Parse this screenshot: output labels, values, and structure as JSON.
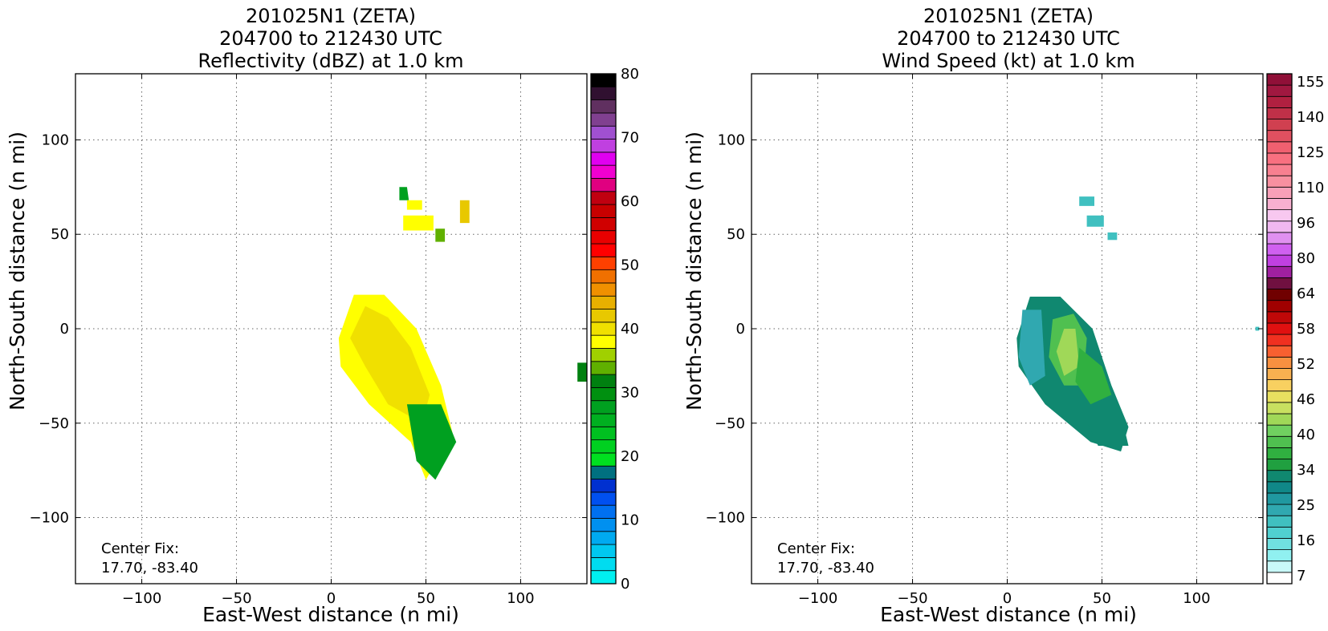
{
  "panels": [
    {
      "id": "reflectivity",
      "title_lines": [
        "201025N1 (ZETA)",
        "204700 to 212430 UTC",
        "Reflectivity (dBZ) at 1.0 km"
      ],
      "center_fix": [
        "Center Fix:",
        "17.70, -83.40"
      ],
      "colorbar": {
        "tick_labels": [
          "0",
          "10",
          "20",
          "30",
          "40",
          "50",
          "60",
          "70",
          "80"
        ],
        "colors": [
          "#00f0f0",
          "#00dcf0",
          "#00c8f0",
          "#00aaf0",
          "#0090f0",
          "#0070f0",
          "#0050f0",
          "#0030d0",
          "#007080",
          "#00e020",
          "#00d020",
          "#00c020",
          "#00b020",
          "#00a020",
          "#009010",
          "#008010",
          "#60b000",
          "#a0d000",
          "#ffff00",
          "#f0e000",
          "#e8c800",
          "#e8b000",
          "#f09000",
          "#f07000",
          "#ff4000",
          "#ff0000",
          "#e80000",
          "#d00000",
          "#c80000",
          "#c00010",
          "#e00080",
          "#f000d0",
          "#e000f0",
          "#c040e0",
          "#a050d0",
          "#804090",
          "#603060",
          "#301030",
          "#000000"
        ]
      }
    },
    {
      "id": "wind",
      "title_lines": [
        "201025N1 (ZETA)",
        "204700 to 212430 UTC",
        "Wind Speed (kt) at 1.0 km"
      ],
      "center_fix": [
        "Center Fix:",
        "17.70, -83.40"
      ],
      "colorbar": {
        "tick_labels": [
          "7",
          "16",
          "25",
          "34",
          "40",
          "46",
          "52",
          "58",
          "64",
          "80",
          "96",
          "110",
          "125",
          "140",
          "155"
        ],
        "colors": [
          "#ffffff",
          "#c8f8f8",
          "#90f0f0",
          "#70e0e0",
          "#50d0d0",
          "#40c0c0",
          "#30a8b0",
          "#2098a0",
          "#108888",
          "#108870",
          "#20a040",
          "#30b040",
          "#50c050",
          "#70d060",
          "#a0d858",
          "#c8e060",
          "#e8e060",
          "#f8d060",
          "#f8b050",
          "#f89040",
          "#f86030",
          "#f03020",
          "#e01010",
          "#c00808",
          "#a00000",
          "#700000",
          "#701040",
          "#a020a0",
          "#c040e0",
          "#d060f0",
          "#e090f0",
          "#f0b8f0",
          "#f8c8f0",
          "#f8b0d0",
          "#f8a0b8",
          "#f890a0",
          "#f88090",
          "#f87080",
          "#f06070",
          "#e05060",
          "#d04050",
          "#c03048",
          "#b02040",
          "#a01840",
          "#901038"
        ]
      }
    }
  ],
  "axes": {
    "xlabel": "East-West distance (n mi)",
    "ylabel": "North-South distance (n mi)",
    "x_ticks": [
      "−100",
      "−50",
      "0",
      "50",
      "100"
    ],
    "y_ticks": [
      "100",
      "50",
      "0",
      "−50",
      "−100"
    ]
  },
  "chart_data": [
    {
      "type": "heatmap",
      "title": "201025N1 (ZETA) 204700 to 212430 UTC Reflectivity (dBZ) at 1.0 km",
      "xlabel": "East-West distance (n mi)",
      "ylabel": "North-South distance (n mi)",
      "xlim": [
        -135,
        135
      ],
      "ylim": [
        -135,
        135
      ],
      "x_ticks": [
        -100,
        -50,
        0,
        50,
        100
      ],
      "y_ticks": [
        -100,
        -50,
        0,
        50,
        100
      ],
      "grid": true,
      "colorbar_range": [
        0,
        80
      ],
      "colorbar_ticks": [
        0,
        10,
        20,
        30,
        40,
        50,
        60,
        70,
        80
      ],
      "units": "dBZ",
      "echo_regions": [
        {
          "polygon": [
            [
              12,
              18
            ],
            [
              28,
              18
            ],
            [
              45,
              0
            ],
            [
              58,
              -30
            ],
            [
              64,
              -55
            ],
            [
              50,
              -80
            ],
            [
              42,
              -60
            ],
            [
              20,
              -40
            ],
            [
              5,
              -20
            ],
            [
              4,
              -5
            ]
          ],
          "approx_value": 38
        },
        {
          "polygon": [
            [
              18,
              12
            ],
            [
              30,
              6
            ],
            [
              42,
              -10
            ],
            [
              52,
              -35
            ],
            [
              48,
              -50
            ],
            [
              30,
              -40
            ],
            [
              18,
              -20
            ],
            [
              10,
              -5
            ]
          ],
          "approx_value": 40
        },
        {
          "polygon": [
            [
              40,
              -40
            ],
            [
              58,
              -40
            ],
            [
              66,
              -60
            ],
            [
              55,
              -80
            ],
            [
              45,
              -70
            ]
          ],
          "approx_value": 28
        },
        {
          "polygon": [
            [
              36,
              75
            ],
            [
              40,
              75
            ],
            [
              41,
              68
            ],
            [
              36,
              68
            ]
          ],
          "approx_value": 28
        },
        {
          "polygon": [
            [
              40,
              68
            ],
            [
              48,
              68
            ],
            [
              48,
              63
            ],
            [
              40,
              63
            ]
          ],
          "approx_value": 38
        },
        {
          "polygon": [
            [
              38,
              60
            ],
            [
              54,
              60
            ],
            [
              54,
              52
            ],
            [
              38,
              52
            ]
          ],
          "approx_value": 38
        },
        {
          "polygon": [
            [
              55,
              53
            ],
            [
              60,
              53
            ],
            [
              60,
              46
            ],
            [
              55,
              46
            ]
          ],
          "approx_value": 34
        },
        {
          "polygon": [
            [
              68,
              68
            ],
            [
              73,
              68
            ],
            [
              73,
              56
            ],
            [
              68,
              56
            ]
          ],
          "approx_value": 42
        },
        {
          "polygon": [
            [
              130,
              -18
            ],
            [
              135,
              -18
            ],
            [
              135,
              -28
            ],
            [
              130,
              -28
            ]
          ],
          "approx_value": 32
        }
      ],
      "center_fix": [
        17.7,
        -83.4
      ]
    },
    {
      "type": "heatmap",
      "title": "201025N1 (ZETA) 204700 to 212430 UTC Wind Speed (kt) at 1.0 km",
      "xlabel": "East-West distance (n mi)",
      "ylabel": "North-South distance (n mi)",
      "xlim": [
        -135,
        135
      ],
      "ylim": [
        -135,
        135
      ],
      "x_ticks": [
        -100,
        -50,
        0,
        50,
        100
      ],
      "y_ticks": [
        -100,
        -50,
        0,
        50,
        100
      ],
      "grid": true,
      "colorbar_range": [
        7,
        160
      ],
      "colorbar_ticks": [
        7,
        16,
        25,
        34,
        40,
        46,
        52,
        58,
        64,
        80,
        96,
        110,
        125,
        140,
        155
      ],
      "units": "kt",
      "wind_regions": [
        {
          "polygon": [
            [
              12,
              17
            ],
            [
              28,
              17
            ],
            [
              45,
              0
            ],
            [
              55,
              -30
            ],
            [
              64,
              -52
            ],
            [
              60,
              -65
            ],
            [
              44,
              -60
            ],
            [
              20,
              -40
            ],
            [
              6,
              -20
            ],
            [
              5,
              -5
            ]
          ],
          "approx_value": 40
        },
        {
          "polygon": [
            [
              8,
              10
            ],
            [
              18,
              10
            ],
            [
              20,
              -25
            ],
            [
              12,
              -30
            ],
            [
              6,
              -15
            ]
          ],
          "approx_value": 28
        },
        {
          "polygon": [
            [
              24,
              5
            ],
            [
              35,
              8
            ],
            [
              42,
              -5
            ],
            [
              40,
              -30
            ],
            [
              30,
              -30
            ],
            [
              22,
              -15
            ]
          ],
          "approx_value": 50
        },
        {
          "polygon": [
            [
              30,
              0
            ],
            [
              36,
              0
            ],
            [
              38,
              -20
            ],
            [
              30,
              -25
            ],
            [
              26,
              -12
            ]
          ],
          "approx_value": 56
        },
        {
          "polygon": [
            [
              38,
              -10
            ],
            [
              50,
              -20
            ],
            [
              55,
              -35
            ],
            [
              44,
              -40
            ],
            [
              36,
              -28
            ]
          ],
          "approx_value": 46
        },
        {
          "polygon": [
            [
              40,
              -45
            ],
            [
              60,
              -45
            ],
            [
              64,
              -62
            ],
            [
              48,
              -62
            ]
          ],
          "approx_value": 38
        },
        {
          "polygon": [
            [
              38,
              70
            ],
            [
              46,
              70
            ],
            [
              46,
              65
            ],
            [
              38,
              65
            ]
          ],
          "approx_value": 26
        },
        {
          "polygon": [
            [
              42,
              60
            ],
            [
              51,
              60
            ],
            [
              51,
              54
            ],
            [
              42,
              54
            ]
          ],
          "approx_value": 26
        },
        {
          "polygon": [
            [
              53,
              51
            ],
            [
              58,
              51
            ],
            [
              58,
              47
            ],
            [
              53,
              47
            ]
          ],
          "approx_value": 26
        },
        {
          "polygon": [
            [
              131,
              1
            ],
            [
              133,
              1
            ],
            [
              133,
              -1
            ],
            [
              131,
              -1
            ]
          ],
          "approx_value": 26
        }
      ],
      "center_fix": [
        17.7,
        -83.4
      ]
    }
  ]
}
